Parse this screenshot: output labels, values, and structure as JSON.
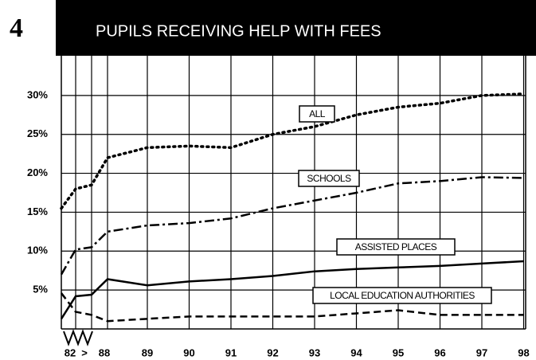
{
  "chart_data": {
    "type": "line",
    "number": "4",
    "title": "PUPILS RECEIVING HELP WITH FEES",
    "categories": [
      "82",
      ">",
      null,
      "88",
      "89",
      "90",
      "91",
      "92",
      "93",
      "94",
      "95",
      "96",
      "97",
      "98"
    ],
    "series": [
      {
        "name": "ALL",
        "color": "#000000",
        "style": "dotted",
        "values": [
          15.5,
          18,
          18.5,
          22,
          23.3,
          23.5,
          23.3,
          25,
          26,
          27.5,
          28.5,
          29,
          30,
          30.2
        ]
      },
      {
        "name": "SCHOOLS",
        "color": "#000000",
        "style": "dashdot",
        "values": [
          7,
          10.2,
          10.5,
          12.5,
          13.3,
          13.6,
          14.2,
          15.5,
          16.5,
          17.5,
          18.7,
          19,
          19.5,
          19.4
        ]
      },
      {
        "name": "ASSISTED PLACES",
        "color": "#000000",
        "style": "solid",
        "values": [
          1.3,
          4.2,
          4.4,
          6.4,
          5.6,
          6.1,
          6.4,
          6.8,
          7.4,
          7.7,
          7.9,
          8.1,
          8.4,
          8.7
        ]
      },
      {
        "name": "LOCAL EDUCATION AUTHORITIES",
        "color": "#000000",
        "style": "dashed",
        "values": [
          4.6,
          2.2,
          1.8,
          1.0,
          1.3,
          1.6,
          1.6,
          1.6,
          1.6,
          2.0,
          2.4,
          1.8,
          1.8,
          1.8
        ]
      }
    ],
    "ylim": [
      0,
      35
    ],
    "yticks": [
      {
        "value": 5,
        "label": "5%"
      },
      {
        "value": 10,
        "label": "10%"
      },
      {
        "value": 15,
        "label": "15%"
      },
      {
        "value": 20,
        "label": "20%"
      },
      {
        "value": 25,
        "label": "25%"
      },
      {
        "value": 30,
        "label": "30%"
      }
    ],
    "grid": true
  }
}
